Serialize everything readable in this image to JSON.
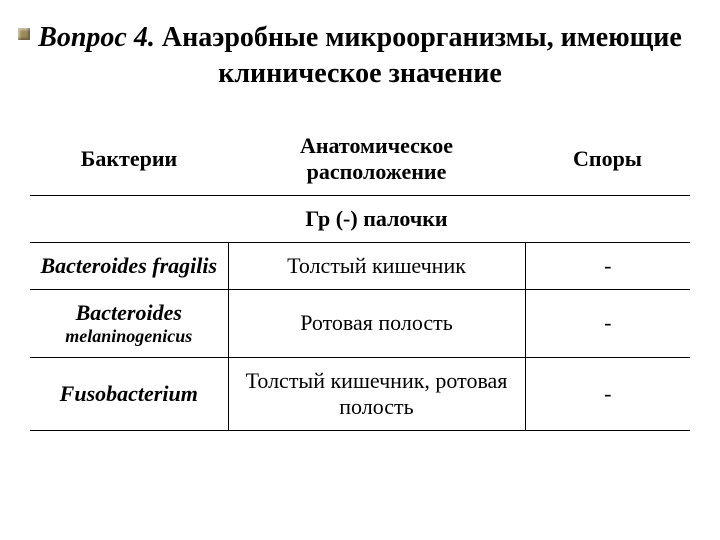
{
  "title": {
    "prefix": "Вопрос 4.",
    "main": " Анаэробные микроорганизмы, имеющие клиническое значение"
  },
  "headers": {
    "col1": "Бактерии",
    "col2": "Анатомическое расположение",
    "col3": "Споры"
  },
  "subheader": "Гр (-) палочки",
  "rows": [
    {
      "name": "Bacteroides fragilis",
      "name_sub": "",
      "location": "Толстый кишечник",
      "spores": "-"
    },
    {
      "name": "Bacteroides",
      "name_sub": "melaninogenicus",
      "location": "Ротовая полость",
      "spores": "-"
    },
    {
      "name": "Fusobacterium",
      "name_sub": "",
      "location": "Толстый кишечник, ротовая полость",
      "spores": "-"
    }
  ],
  "colors": {
    "text": "#000000",
    "background": "#ffffff",
    "border": "#000000",
    "bullet": "#9b8a5a"
  }
}
